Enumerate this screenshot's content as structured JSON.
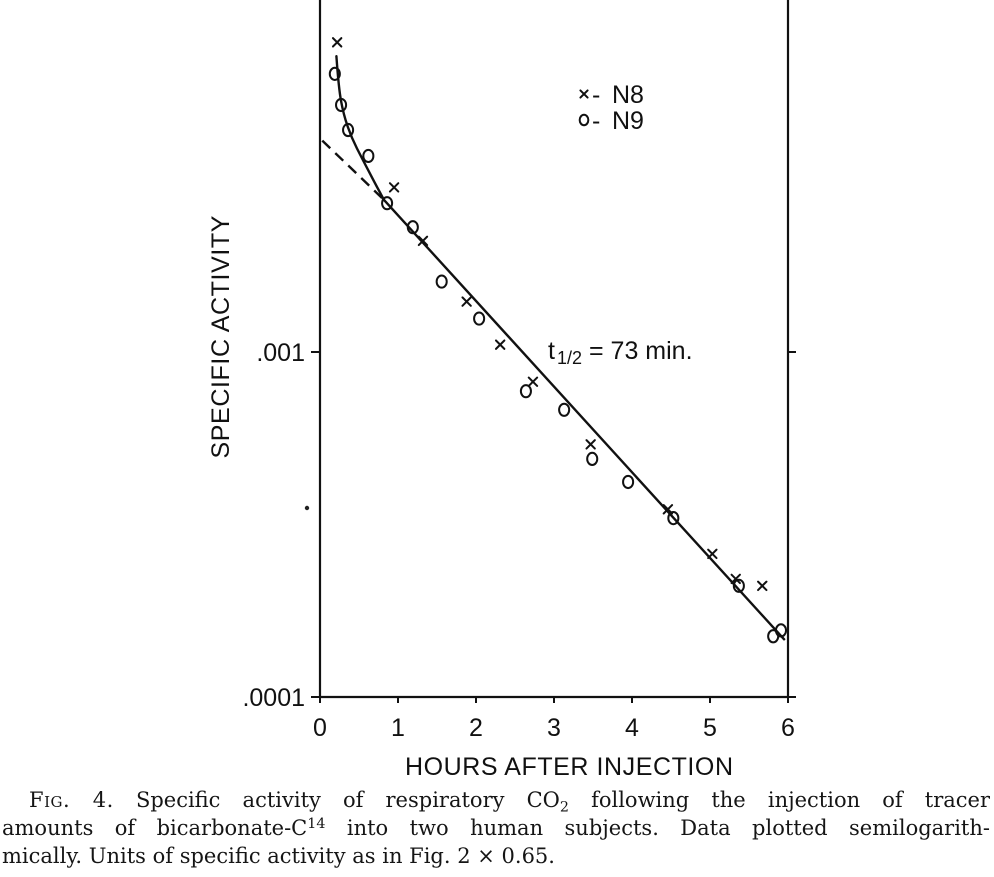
{
  "chart_data": {
    "type": "scatter",
    "xlabel": "HOURS AFTER INJECTION",
    "ylabel": "SPECIFIC ACTIVITY",
    "xlim": [
      0,
      6
    ],
    "ylim": [
      0.0001,
      0.01
    ],
    "yscale": "log",
    "grid": false,
    "x_ticks": [
      {
        "value": 0,
        "label": "0"
      },
      {
        "value": 1,
        "label": "1"
      },
      {
        "value": 2,
        "label": "2"
      },
      {
        "value": 3,
        "label": "3"
      },
      {
        "value": 4,
        "label": "4"
      },
      {
        "value": 5,
        "label": "5"
      },
      {
        "value": 6,
        "label": "6"
      }
    ],
    "y_ticks": [
      {
        "value": 0.001,
        "label": ".001"
      },
      {
        "value": 0.0001,
        "label": ".0001"
      }
    ],
    "legend": {
      "position": "upper-right",
      "separator": "-"
    },
    "series": [
      {
        "name": "N8",
        "marker": "x",
        "points": [
          [
            0.22,
            0.0079
          ],
          [
            0.95,
            0.003
          ],
          [
            1.32,
            0.0021
          ],
          [
            1.88,
            0.0014
          ],
          [
            2.31,
            0.00105
          ],
          [
            2.73,
            0.00082
          ],
          [
            3.47,
            0.00054
          ],
          [
            4.46,
            0.00035
          ],
          [
            5.03,
            0.00026
          ],
          [
            5.33,
            0.00022
          ],
          [
            5.67,
            0.00021
          ]
        ]
      },
      {
        "name": "N9",
        "marker": "o",
        "points": [
          [
            0.19,
            0.0064
          ],
          [
            0.27,
            0.0052
          ],
          [
            0.36,
            0.0044
          ],
          [
            0.62,
            0.0037
          ],
          [
            0.86,
            0.0027
          ],
          [
            1.19,
            0.0023
          ],
          [
            1.56,
            0.0016
          ],
          [
            2.04,
            0.00125
          ],
          [
            2.64,
            0.00077
          ],
          [
            3.13,
            0.00068
          ],
          [
            3.49,
            0.00049
          ],
          [
            3.95,
            0.00042
          ],
          [
            4.53,
            0.00033
          ],
          [
            5.37,
            0.00021
          ],
          [
            5.81,
            0.00015
          ],
          [
            5.91,
            0.000156
          ]
        ]
      }
    ],
    "fit": {
      "curve": [
        [
          0.21,
          0.0072
        ],
        [
          0.24,
          0.0058
        ],
        [
          0.3,
          0.0049
        ],
        [
          0.4,
          0.0042
        ],
        [
          0.55,
          0.0036
        ],
        [
          0.7,
          0.0031
        ],
        [
          0.82,
          0.00276
        ]
      ],
      "dashed": [
        [
          0.03,
          0.0041
        ],
        [
          0.82,
          0.00276
        ]
      ],
      "solid": [
        [
          0.82,
          0.00276
        ],
        [
          5.95,
          0.000147
        ]
      ]
    },
    "annotation": {
      "symbol": "t",
      "subscript": "1/2",
      "value": "= 73 min."
    }
  },
  "caption": {
    "label": "Fig. 4.",
    "line1_a": "Specific activity of respiratory CO",
    "line1_sub": "2",
    "line1_b": "following the injection of tracer",
    "line2_a": "amounts of bicarbonate-C",
    "line2_sup": "14",
    "line2_b": "into two human subjects. Data plotted semilogarith-",
    "line3": "mically. Units of specific activity as in Fig. 2 × 0.65."
  }
}
